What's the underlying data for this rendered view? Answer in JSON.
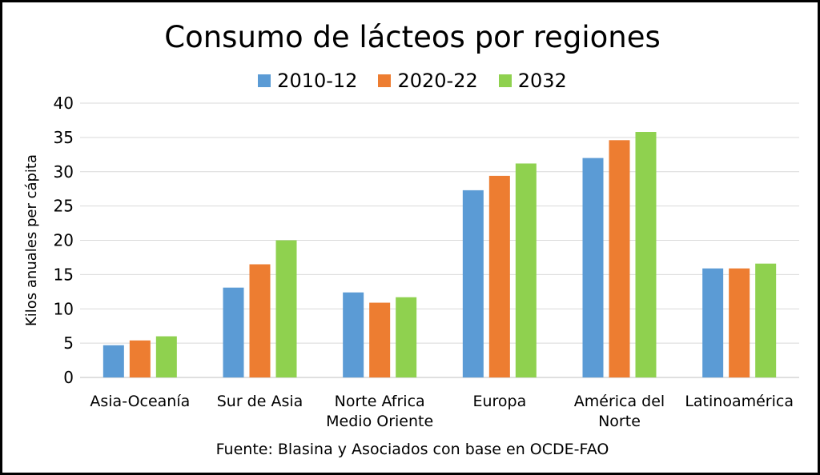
{
  "chart_data": {
    "type": "bar",
    "title": "Consumo de lácteos por regiones",
    "ylabel": "Kilos anuales per cápita",
    "xlabel": "",
    "ylim": [
      0,
      40
    ],
    "yticks": [
      0,
      5,
      10,
      15,
      20,
      25,
      30,
      35,
      40
    ],
    "grid": true,
    "legend_position": "top",
    "categories": [
      [
        "Asia-Oceanía"
      ],
      [
        "Sur de Asia"
      ],
      [
        "Norte Africa",
        "Medio Oriente"
      ],
      [
        "Europa"
      ],
      [
        "América del",
        "Norte"
      ],
      [
        "Latinoamérica"
      ]
    ],
    "series": [
      {
        "name": "2010-12",
        "color": "#5B9BD5",
        "values": [
          4.7,
          13.1,
          12.4,
          27.3,
          32.0,
          15.9
        ]
      },
      {
        "name": "2020-22",
        "color": "#ED7D31",
        "values": [
          5.4,
          16.5,
          10.9,
          29.4,
          34.6,
          15.9
        ]
      },
      {
        "name": "2032",
        "color": "#8FD14F",
        "values": [
          6.0,
          20.0,
          11.7,
          31.2,
          35.8,
          16.6
        ]
      }
    ],
    "source": "Fuente: Blasina y Asociados con base en OCDE-FAO"
  }
}
